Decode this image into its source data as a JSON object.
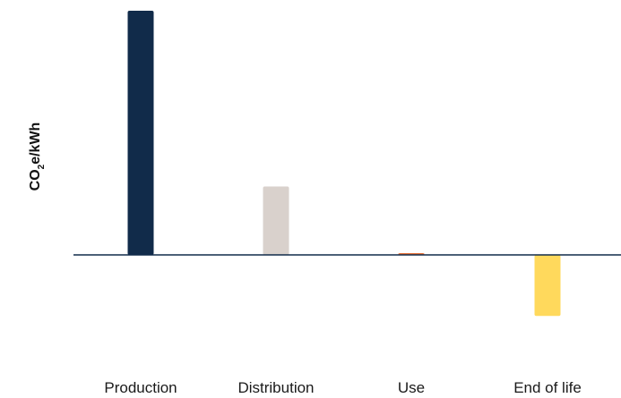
{
  "chart_data": {
    "type": "bar",
    "categories": [
      "Production",
      "Distribution",
      "Use",
      "End of life"
    ],
    "values": [
      100,
      28,
      0.6,
      -25
    ],
    "colors": [
      "#112b4a",
      "#d9d1cc",
      "#e8743b",
      "#ffd95c"
    ],
    "ylabel_parts": [
      "CO",
      "2",
      "e/kWh"
    ],
    "ylim": [
      -50,
      100
    ],
    "grid": false,
    "legend": "none",
    "baseline_color": "#112b4a"
  }
}
